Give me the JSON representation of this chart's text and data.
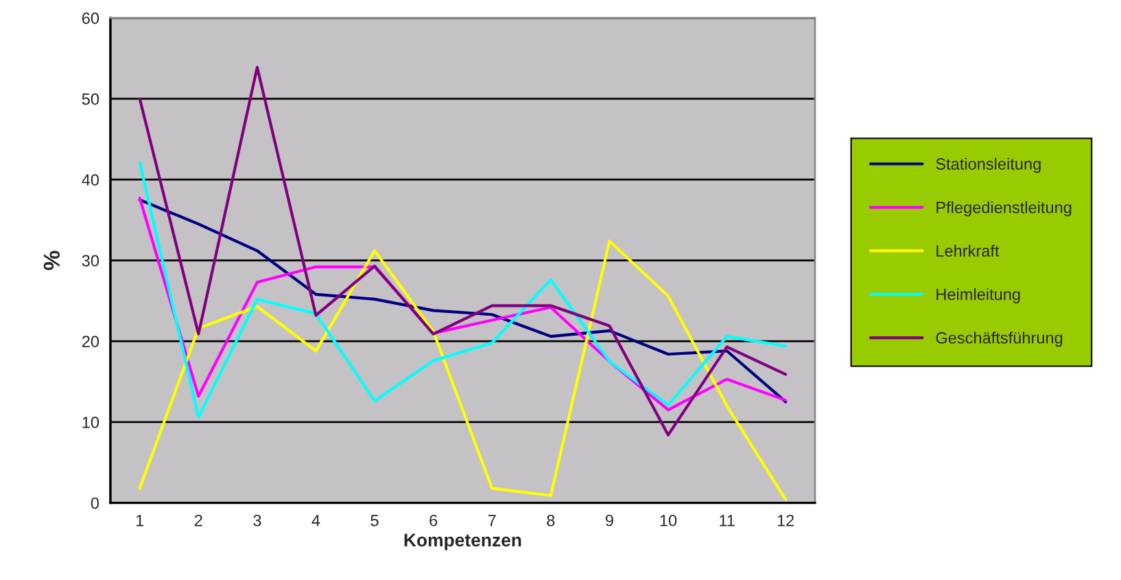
{
  "chart_data": {
    "type": "line",
    "xlabel": "Kompetenzen",
    "ylabel": "%",
    "categories": [
      "1",
      "2",
      "3",
      "4",
      "5",
      "6",
      "7",
      "8",
      "9",
      "10",
      "11",
      "12"
    ],
    "ylim": [
      0,
      60
    ],
    "yticks": [
      0,
      10,
      20,
      30,
      40,
      50,
      60
    ],
    "grid": "y",
    "legend": "right",
    "marker": "none",
    "line_style": "solid",
    "series": [
      {
        "name": "Stationsleitung",
        "color": "#000080",
        "values": [
          37.5,
          34.5,
          31.2,
          25.8,
          25.2,
          23.8,
          23.3,
          20.6,
          21.3,
          18.4,
          18.8,
          12.5
        ]
      },
      {
        "name": "Pflegedienstleitung",
        "color": "#ff00ff",
        "values": [
          37.7,
          13.2,
          27.3,
          29.2,
          29.2,
          21.0,
          22.6,
          24.2,
          17.5,
          11.5,
          15.3,
          12.7
        ]
      },
      {
        "name": "Lehrkraft",
        "color": "#ffff00",
        "values": [
          1.8,
          21.6,
          24.3,
          18.8,
          31.2,
          21.2,
          1.8,
          0.9,
          32.4,
          25.6,
          12.0,
          0.4
        ]
      },
      {
        "name": "Heimleitung",
        "color": "#00ffff",
        "values": [
          42.1,
          10.6,
          25.2,
          23.4,
          12.6,
          17.6,
          19.8,
          27.6,
          17.5,
          12.1,
          20.6,
          19.4
        ]
      },
      {
        "name": "Geschäftsführung",
        "color": "#800080",
        "values": [
          50.0,
          20.9,
          53.9,
          23.2,
          29.3,
          20.9,
          24.4,
          24.4,
          21.9,
          8.4,
          19.3,
          15.9
        ]
      }
    ]
  }
}
